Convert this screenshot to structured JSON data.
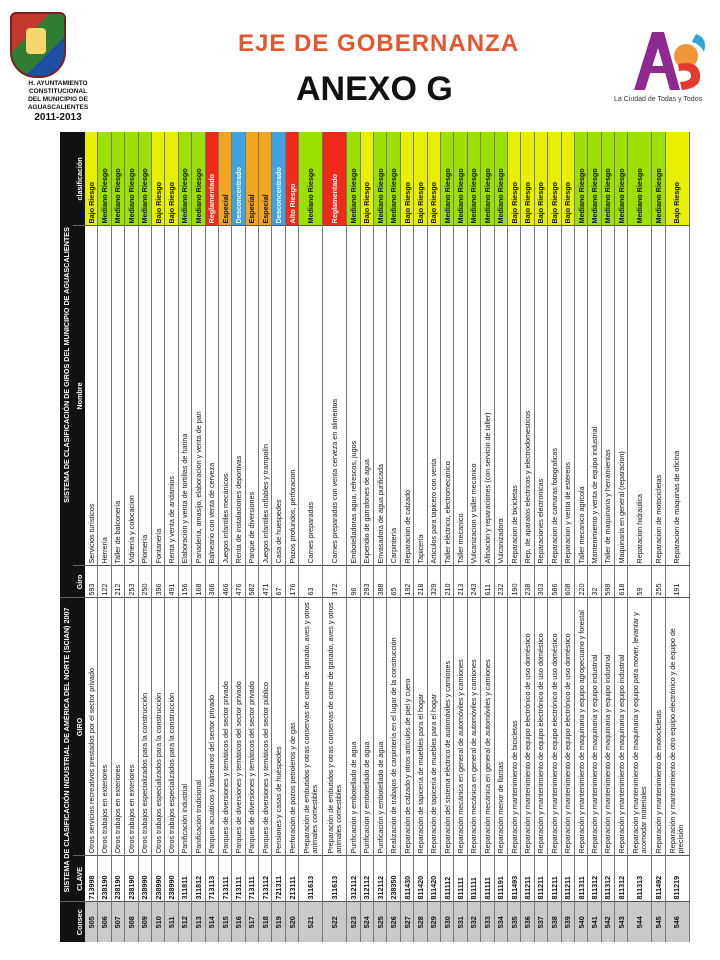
{
  "header": {
    "org_lines": [
      "H. AYUNTAMIENTO",
      "CONSTITUCIONAL",
      "DEL MUNICIPIO DE",
      "AGUASCALIENTES"
    ],
    "years": "2011-2013",
    "eje": "EJE DE GOBERNANZA",
    "anexo": "ANEXO G",
    "ags_logo_text": "Ags",
    "ags_tagline": "La Ciudad de Todas y Todos"
  },
  "table": {
    "group_left": "SISTEMA DE CLASIFICACIÓN INDUSTRIAL DE AMÉRICA DEL NORTE (SCIAN) 2007",
    "group_right": "SISTEMA DE CLASIFICACIÓN DE GIROS DEL MUNICIPIO DE AGUASCALIENTES",
    "columns": [
      "Consec",
      "CLAVE",
      "GIRO",
      "Giro",
      "Nombre",
      "clasificación"
    ],
    "class_colors": {
      "Bajo Riesgo": "#e8f000",
      "Mediano Riesgo": "#9be000",
      "Reglamentado": "#ef2a1a",
      "Especial": "#f0a51c",
      "Desconcentrado": "#3fa3e2",
      "Alto Riesgo": "#ef2a1a"
    },
    "rows": [
      {
        "consec": "505",
        "clave": "713998",
        "giro": "Otros servicios recreativos prestados por el sector privado",
        "g": "593",
        "nombre": "Servicios turísticos",
        "cls": "Bajo Riesgo"
      },
      {
        "consec": "506",
        "clave": "238190",
        "giro": "Otros trabajos en exteriores",
        "g": "122",
        "nombre": "Herrería",
        "cls": "Mediano Riesgo"
      },
      {
        "consec": "507",
        "clave": "238190",
        "giro": "Otros trabajos en exteriores",
        "g": "212",
        "nombre": "Taller de balconería",
        "cls": "Mediano Riesgo"
      },
      {
        "consec": "508",
        "clave": "238190",
        "giro": "Otros trabajos en exteriores",
        "g": "253",
        "nombre": "Vidriería y colocacion",
        "cls": "Mediano Riesgo"
      },
      {
        "consec": "509",
        "clave": "238990",
        "giro": "Otros trabajos especializados para la construcción",
        "g": "250",
        "nombre": "Plomería",
        "cls": "Mediano Riesgo"
      },
      {
        "consec": "510",
        "clave": "238990",
        "giro": "Otros trabajos especializados para la construcción",
        "g": "396",
        "nombre": "Fontanería",
        "cls": "Bajo Riesgo"
      },
      {
        "consec": "511",
        "clave": "238990",
        "giro": "Otros trabajos especializados para la construcción",
        "g": "491",
        "nombre": "Renta y venta de andamios",
        "cls": "Bajo Riesgo"
      },
      {
        "consec": "512",
        "clave": "311811",
        "giro": "Panificación industrial",
        "g": "156",
        "nombre": "Elaboracion y venta de tortillas de harina",
        "cls": "Mediano Riesgo"
      },
      {
        "consec": "513",
        "clave": "311812",
        "giro": "Panificación tradicional",
        "g": "168",
        "nombre": "Panadería, amasijo, elaboracion y venta de pan",
        "cls": "Mediano Riesgo"
      },
      {
        "consec": "514",
        "clave": "713113",
        "giro": "Parques acuáticos y balnearios del sector privado",
        "g": "366",
        "nombre": "Balneario con venta de cerveza",
        "cls": "Reglamentado"
      },
      {
        "consec": "515",
        "clave": "713111",
        "giro": "Parques de diversiones y temáticos del sector privado",
        "g": "466",
        "nombre": "Juegos infantiles mecánicos",
        "cls": "Especial"
      },
      {
        "consec": "516",
        "clave": "713111",
        "giro": "Parques de diversiones y temáticos del sector privado",
        "g": "476",
        "nombre": "Renta de instalaciones deportivas",
        "cls": "Desconcentrado"
      },
      {
        "consec": "517",
        "clave": "713111",
        "giro": "Parques de diversiones y temáticos del sector privado",
        "g": "582",
        "nombre": "Parque de diversiones",
        "cls": "Especial"
      },
      {
        "consec": "518",
        "clave": "713112",
        "giro": "Parques de diversiones y temáticos del sector público",
        "g": "471",
        "nombre": "Juegos infantiles inflables y trampolín",
        "cls": "Especial"
      },
      {
        "consec": "519",
        "clave": "721311",
        "giro": "Pensiones y casas de huéspedes",
        "g": "67",
        "nombre": "Casa de huespedes",
        "cls": "Desconcentrado"
      },
      {
        "consec": "520",
        "clave": "213111",
        "giro": "Perforación de pozos petroleros y de gas",
        "g": "176",
        "nombre": "Pozos profundos, perforacion",
        "cls": "Alto Riesgo"
      },
      {
        "consec": "521",
        "clave": "311613",
        "giro": "Preparación de embutidos y otras conservas de carne de ganado, aves y otros animales comestibles",
        "g": "63",
        "nombre": "Carnes preparadas",
        "cls": "Mediano Riesgo",
        "tall": true
      },
      {
        "consec": "522",
        "clave": "311613",
        "giro": "Preparación de embutidos y otras conservas de carne de ganado, aves y otros animales comestibles",
        "g": "372",
        "nombre": "Carnes preparadas con venta cerveza en alimentos",
        "cls": "Reglamentado",
        "tall": true
      },
      {
        "consec": "523",
        "clave": "312112",
        "giro": "Purificación y embotellado de agua",
        "g": "96",
        "nombre": "Embotelladoras agua, refrescos, jugos",
        "cls": "Mediano Riesgo"
      },
      {
        "consec": "524",
        "clave": "312112",
        "giro": "Purificación y embotellado de agua",
        "g": "293",
        "nombre": "Expendio de garrafones de agua",
        "cls": "Bajo Riesgo"
      },
      {
        "consec": "525",
        "clave": "312112",
        "giro": "Purificación y embotellado de agua",
        "g": "388",
        "nombre": "Envasadora de agua purificada",
        "cls": "Mediano Riesgo"
      },
      {
        "consec": "526",
        "clave": "238350",
        "giro": "Realización de trabajos de carpintería en el lugar de la construcción",
        "g": "65",
        "nombre": "Carpintería",
        "cls": "Mediano Riesgo"
      },
      {
        "consec": "527",
        "clave": "811430",
        "giro": "Reparación de calzado y otros artículos de piel y cuero",
        "g": "192",
        "nombre": "Reparacion de calzado",
        "cls": "Bajo Riesgo"
      },
      {
        "consec": "528",
        "clave": "811420",
        "giro": "Reparación de tapicería de muebles para el hogar",
        "g": "218",
        "nombre": "Tapicería",
        "cls": "Bajo Riesgo"
      },
      {
        "consec": "529",
        "clave": "811420",
        "giro": "Reparación de tapicería de muebles para el hogar",
        "g": "329",
        "nombre": "Articulos para tapicero con venta",
        "cls": "Bajo Riesgo"
      },
      {
        "consec": "530",
        "clave": "811112",
        "giro": "Reparación del sistema eléctrico de automóviles y camiones",
        "g": "210",
        "nombre": "Taller eléctrico, electromecanico",
        "cls": "Mediano Riesgo"
      },
      {
        "consec": "531",
        "clave": "811111",
        "giro": "Reparación mecánica en general de automóviles y camiones",
        "g": "213",
        "nombre": "Taller mecanico",
        "cls": "Mediano Riesgo"
      },
      {
        "consec": "532",
        "clave": "811111",
        "giro": "Reparación mecánica en general de automóviles y camiones",
        "g": "243",
        "nombre": "Vulcanizacion y taller mecanico",
        "cls": "Mediano Riesgo"
      },
      {
        "consec": "533",
        "clave": "811111",
        "giro": "Reparación mecánica en general de automóviles y camiones",
        "g": "611",
        "nombre": "Afinación y reparaciones (con servicio de taller)",
        "cls": "Mediano Riesgo"
      },
      {
        "consec": "534",
        "clave": "811191",
        "giro": "Reparación menor de llantas",
        "g": "232",
        "nombre": "Vulcanizadora",
        "cls": "Mediano Riesgo"
      },
      {
        "consec": "535",
        "clave": "811493",
        "giro": "Reparación y mantenimiento de bicicletas",
        "g": "190",
        "nombre": "Reparacion de bicicletas",
        "cls": "Bajo Riesgo"
      },
      {
        "consec": "536",
        "clave": "811211",
        "giro": "Reparación y mantenimiento de equipo electrónico de uso doméstico",
        "g": "238",
        "nombre": "Rep. de aparatos electricos y electrodomesticos",
        "cls": "Bajo Riesgo"
      },
      {
        "consec": "537",
        "clave": "811211",
        "giro": "Reparación y mantenimiento de equipo electrónico de uso doméstico",
        "g": "303",
        "nombre": "Reparaciones electronicas",
        "cls": "Bajo Riesgo"
      },
      {
        "consec": "538",
        "clave": "811211",
        "giro": "Reparación y mantenimiento de equipo electrónico de uso doméstico",
        "g": "586",
        "nombre": "Reparacion de camaras fotograficas",
        "cls": "Bajo Riesgo"
      },
      {
        "consec": "539",
        "clave": "811211",
        "giro": "Reparación y mantenimiento de equipo electrónico de uso doméstico",
        "g": "608",
        "nombre": "Reparacion y venta de estereos",
        "cls": "Bajo Riesgo"
      },
      {
        "consec": "540",
        "clave": "811311",
        "giro": "Reparación y mantenimiento de maquinaria y equipo agropecuario y forestal",
        "g": "220",
        "nombre": "Taller mecanico agricola",
        "cls": "Mediano Riesgo"
      },
      {
        "consec": "541",
        "clave": "811312",
        "giro": "Reparación y mantenimiento de maquinaria y equipo industrial",
        "g": "32",
        "nombre": "Mantenimiento y venta de equipo industrial",
        "cls": "Mediano Riesgo"
      },
      {
        "consec": "542",
        "clave": "811312",
        "giro": "Reparación y mantenimiento de maquinaria y equipo industrial",
        "g": "598",
        "nombre": "Taller de maquinaria y herramientas",
        "cls": "Mediano Riesgo"
      },
      {
        "consec": "543",
        "clave": "811312",
        "giro": "Reparación y mantenimiento de maquinaria y equipo industrial",
        "g": "618",
        "nombre": "Maquinaria en general (reparacion)",
        "cls": "Mediano Riesgo"
      },
      {
        "consec": "544",
        "clave": "811313",
        "giro": "Reparación y mantenimiento de maquinaria y equipo para mover, levantar y acomodar materiales",
        "g": "59",
        "nombre": "Reparacion hidraulica",
        "cls": "Mediano Riesgo",
        "tall": true
      },
      {
        "consec": "545",
        "clave": "811492",
        "giro": "Reparación y mantenimiento de motocicletas",
        "g": "255",
        "nombre": "Reparacion de motocicletas",
        "cls": "Mediano Riesgo"
      },
      {
        "consec": "546",
        "clave": "811219",
        "giro": "Reparación y mantenimiento de otro equipo electrónico y de equipo de precisión",
        "g": "191",
        "nombre": "Reparacion de maquinas de oficina",
        "cls": "Bajo Riesgo",
        "tall": true
      }
    ]
  }
}
